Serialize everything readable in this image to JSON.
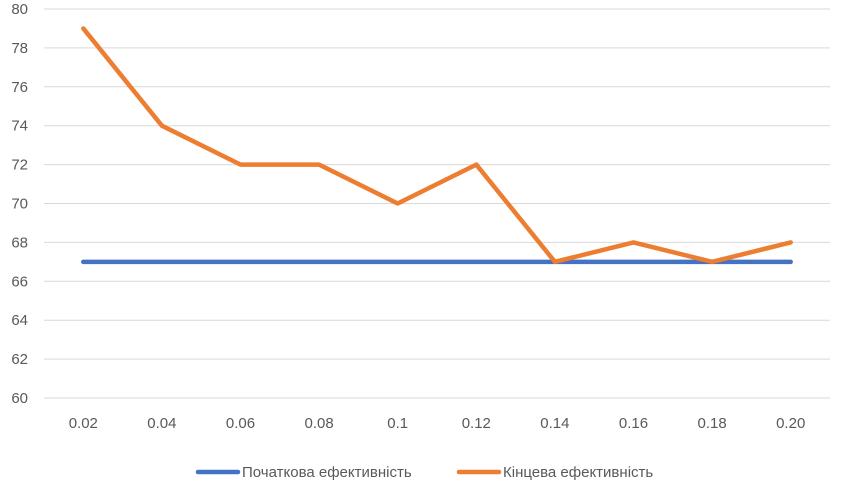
{
  "chart_data": {
    "type": "line",
    "title": "",
    "xlabel": "",
    "ylabel": "",
    "categories": [
      "0.02",
      "0.04",
      "0.06",
      "0.08",
      "0.1",
      "0.12",
      "0.14",
      "0.16",
      "0.18",
      "0.20"
    ],
    "ylim": [
      60,
      80
    ],
    "yticks": [
      "60",
      "62",
      "64",
      "66",
      "68",
      "70",
      "72",
      "74",
      "76",
      "78",
      "80"
    ],
    "grid": "horizontal",
    "legend_position": "bottom",
    "series": [
      {
        "name": "Початкова ефективність",
        "color": "#4472C4",
        "values": [
          67,
          67,
          67,
          67,
          67,
          67,
          67,
          67,
          67,
          67
        ]
      },
      {
        "name": "Кінцева ефективність",
        "color": "#ED7D31",
        "values": [
          79,
          74,
          72,
          72,
          70,
          72,
          67,
          68,
          67,
          68
        ]
      }
    ]
  }
}
